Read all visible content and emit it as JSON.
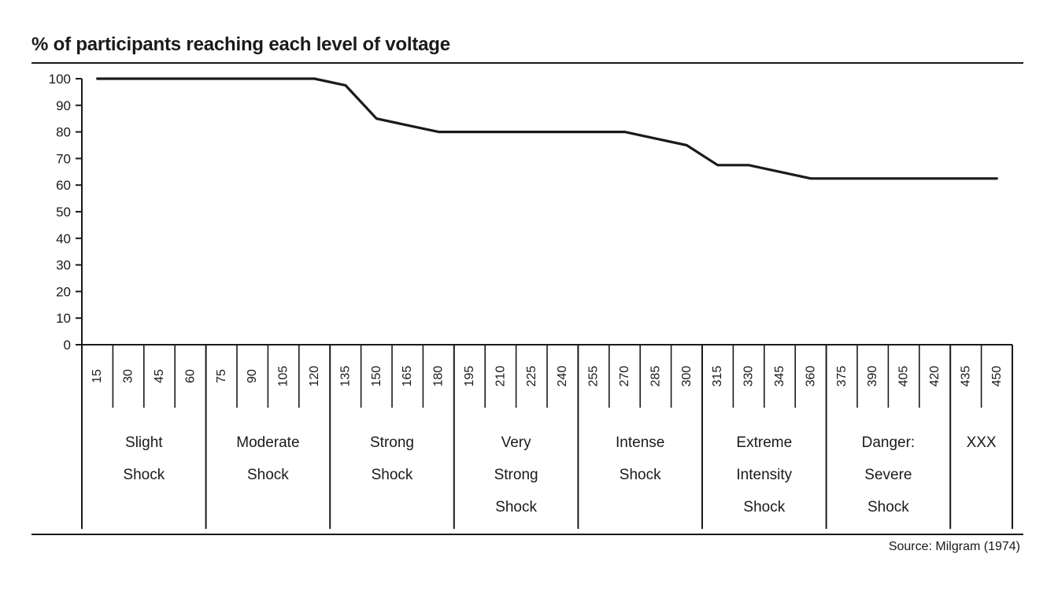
{
  "chart_data": {
    "type": "line",
    "title": "% of participants reaching each level of voltage",
    "source": "Source: Milgram (1974)",
    "ylim": [
      0,
      100
    ],
    "yticks": [
      "0",
      "10",
      "20",
      "30",
      "40",
      "50",
      "60",
      "70",
      "80",
      "90",
      "100"
    ],
    "x": [
      "15",
      "30",
      "45",
      "60",
      "75",
      "90",
      "105",
      "120",
      "135",
      "150",
      "165",
      "180",
      "195",
      "210",
      "225",
      "240",
      "255",
      "270",
      "285",
      "300",
      "315",
      "330",
      "345",
      "360",
      "375",
      "390",
      "405",
      "420",
      "435",
      "450"
    ],
    "series": [
      {
        "values": [
          100,
          100,
          100,
          100,
          100,
          100,
          100,
          100,
          97.5,
          85,
          82.5,
          80,
          80,
          80,
          80,
          80,
          80,
          80,
          77.5,
          75,
          67.5,
          67.5,
          65,
          62.5,
          62.5,
          62.5,
          62.5,
          62.5,
          62.5,
          62.5
        ]
      }
    ],
    "bands": [
      {
        "lines": [
          "Slight",
          "Shock"
        ],
        "count": 4
      },
      {
        "lines": [
          "Moderate",
          "Shock"
        ],
        "count": 4
      },
      {
        "lines": [
          "Strong",
          "Shock"
        ],
        "count": 4
      },
      {
        "lines": [
          "Very",
          "Strong",
          "Shock"
        ],
        "count": 4
      },
      {
        "lines": [
          "Intense",
          "Shock"
        ],
        "count": 4
      },
      {
        "lines": [
          "Extreme",
          "Intensity",
          "Shock"
        ],
        "count": 4
      },
      {
        "lines": [
          "Danger:",
          "Severe",
          "Shock"
        ],
        "count": 4
      },
      {
        "lines": [
          "XXX"
        ],
        "count": 2
      }
    ],
    "grid": false,
    "colors": {
      "line": "#1a1a1a",
      "axis": "#1a1a1a",
      "background": "#ffffff"
    }
  }
}
